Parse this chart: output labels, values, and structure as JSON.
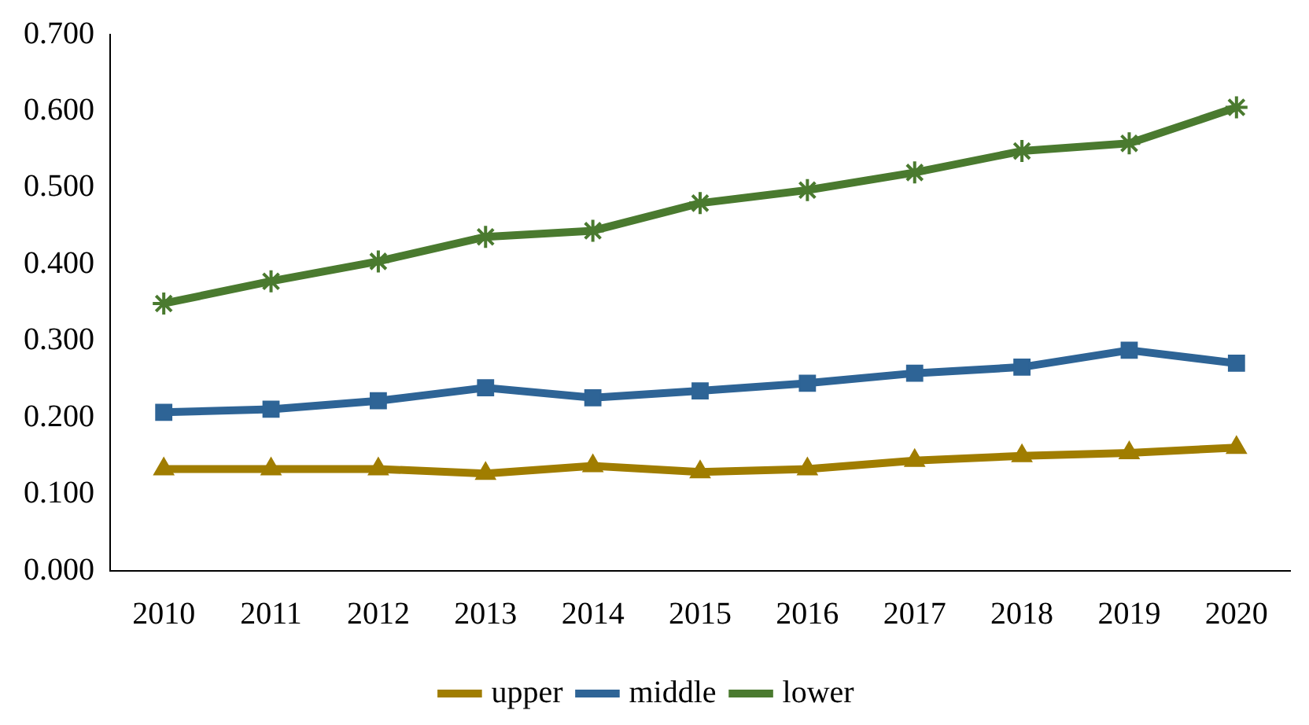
{
  "chart_data": {
    "type": "line",
    "categories": [
      "2010",
      "2011",
      "2012",
      "2013",
      "2014",
      "2015",
      "2016",
      "2017",
      "2018",
      "2019",
      "2020"
    ],
    "series": [
      {
        "name": "upper",
        "color": "#a07d00",
        "marker": "triangle",
        "values": [
          0.133,
          0.133,
          0.133,
          0.127,
          0.137,
          0.129,
          0.133,
          0.144,
          0.15,
          0.154,
          0.161
        ]
      },
      {
        "name": "middle",
        "color": "#2e6496",
        "marker": "square",
        "values": [
          0.207,
          0.211,
          0.222,
          0.239,
          0.226,
          0.235,
          0.245,
          0.258,
          0.266,
          0.288,
          0.271
        ]
      },
      {
        "name": "lower",
        "color": "#4a7a2f",
        "marker": "cross",
        "values": [
          0.349,
          0.378,
          0.404,
          0.436,
          0.444,
          0.48,
          0.497,
          0.52,
          0.548,
          0.558,
          0.605
        ]
      }
    ],
    "ylim": [
      0,
      0.7
    ],
    "yticks": [
      {
        "value": 0,
        "label": "0.000"
      },
      {
        "value": 0.1,
        "label": "0.100"
      },
      {
        "value": 0.2,
        "label": "0.200"
      },
      {
        "value": 0.3,
        "label": "0.300"
      },
      {
        "value": 0.4,
        "label": "0.400"
      },
      {
        "value": 0.5,
        "label": "0.500"
      },
      {
        "value": 0.6,
        "label": "0.600"
      },
      {
        "value": 0.7,
        "label": "0.700"
      }
    ],
    "grid": false,
    "legend": "bottom",
    "line_style": "solid"
  }
}
